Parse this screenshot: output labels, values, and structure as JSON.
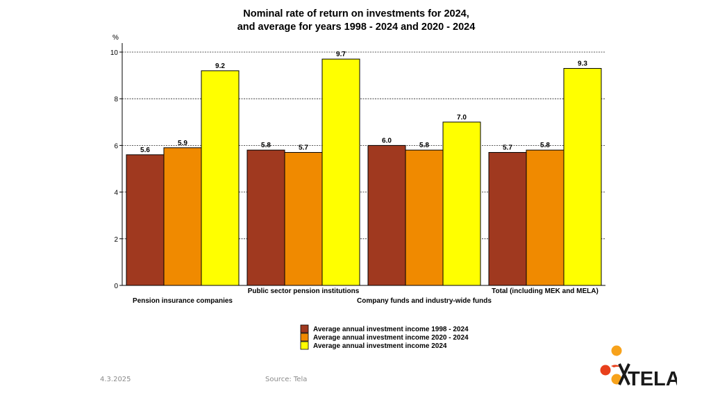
{
  "footer": {
    "date": "4.3.2025",
    "source": "Source: Tela"
  },
  "logo": {
    "text": "TELA",
    "colors": [
      "#f7a21b",
      "#e8401c"
    ]
  },
  "chart_data": {
    "type": "bar",
    "title": [
      "Nominal rate of return on investments for 2024,",
      "and average for years 1998 - 2024 and 2020 - 2024"
    ],
    "ylabel": "%",
    "ylim": [
      0,
      10
    ],
    "yticks": [
      0,
      2,
      4,
      6,
      8,
      10
    ],
    "grid": "horizontal dashed",
    "categories": [
      "Pension insurance companies",
      "Public sector pension institutions",
      "Company funds and industry-wide funds",
      "Total (including MEK and MELA)"
    ],
    "series": [
      {
        "name": "Average annual investment income 1998 - 2024",
        "color": "#a0391f",
        "values": [
          5.6,
          5.8,
          6.0,
          5.7
        ]
      },
      {
        "name": "Average annual investment income 2020 - 2024",
        "color": "#f08a00",
        "values": [
          5.9,
          5.7,
          5.8,
          5.8
        ]
      },
      {
        "name": "Average annual investment income 2024",
        "color": "#ffff00",
        "values": [
          9.2,
          9.7,
          7.0,
          9.3
        ]
      }
    ],
    "legend": "bottom-center"
  }
}
